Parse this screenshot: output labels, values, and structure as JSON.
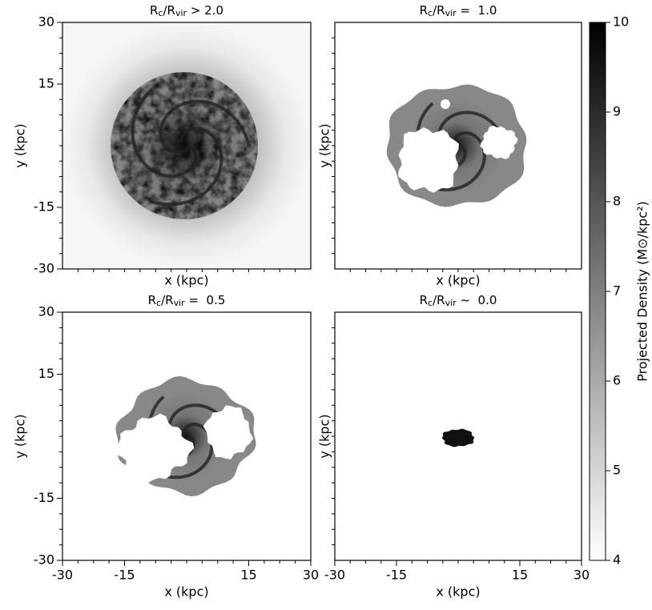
{
  "chart_data": [
    {
      "type": "heatmap",
      "title": [
        "R",
        "c",
        "/R",
        "vir",
        " > 2.0"
      ],
      "xlabel": "x (kpc)",
      "ylabel": "y (kpc)",
      "xlim": [
        -30,
        30
      ],
      "ylim": [
        -30,
        30
      ],
      "yticks": [
        -30,
        -15,
        15,
        30
      ]
    },
    {
      "type": "heatmap",
      "title": [
        "R",
        "c",
        "/R",
        "vir",
        " =  1.0"
      ],
      "xlabel": "x (kpc)",
      "ylabel": "y (kpc)",
      "xlim": [
        -30,
        30
      ],
      "ylim": [
        -30,
        30
      ]
    },
    {
      "type": "heatmap",
      "title": [
        "R",
        "c",
        "/R",
        "vir",
        " =  0.5"
      ],
      "xlabel": "x (kpc)",
      "ylabel": "y (kpc)",
      "xlim": [
        -30,
        30
      ],
      "ylim": [
        -30,
        30
      ],
      "xticks": [
        -30,
        -15,
        15,
        30
      ],
      "yticks": [
        -30,
        -15,
        15,
        30
      ]
    },
    {
      "type": "heatmap",
      "title": [
        "R",
        "c",
        "/R",
        "vir",
        " ~  0.0"
      ],
      "xlabel": "x (kpc)",
      "ylabel": "y (kpc)",
      "xlim": [
        -30,
        30
      ],
      "ylim": [
        -30,
        30
      ],
      "xticks": [
        -30,
        -15,
        15,
        30
      ]
    }
  ],
  "colorbar": {
    "label": "Projected Density (M⊙/kpc²)",
    "lim": [
      4,
      10
    ],
    "ticks": [
      4,
      5,
      6,
      7,
      8,
      9,
      10
    ]
  }
}
